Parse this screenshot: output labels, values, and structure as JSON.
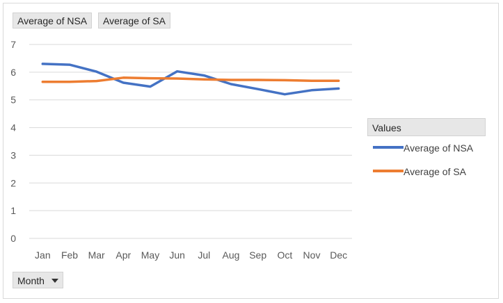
{
  "filters": {
    "values_buttons": [
      "Average of NSA",
      "Average of SA"
    ],
    "axis_field": "Month"
  },
  "legend": {
    "title": "Values",
    "items": [
      {
        "label": "Average of NSA",
        "color": "#4472c4"
      },
      {
        "label": "Average of SA",
        "color": "#ed7d31"
      }
    ]
  },
  "chart_data": {
    "type": "line",
    "categories": [
      "Jan",
      "Feb",
      "Mar",
      "Apr",
      "May",
      "Jun",
      "Jul",
      "Aug",
      "Sep",
      "Oct",
      "Nov",
      "Dec"
    ],
    "series": [
      {
        "name": "Average of NSA",
        "color": "#4472c4",
        "values": [
          6.3,
          6.27,
          6.02,
          5.62,
          5.48,
          6.03,
          5.88,
          5.57,
          5.39,
          5.2,
          5.35,
          5.41
        ]
      },
      {
        "name": "Average of SA",
        "color": "#ed7d31",
        "values": [
          5.65,
          5.65,
          5.68,
          5.8,
          5.78,
          5.77,
          5.74,
          5.72,
          5.72,
          5.71,
          5.69,
          5.69
        ]
      }
    ],
    "y_ticks": [
      "0",
      "1",
      "2",
      "3",
      "4",
      "5",
      "6",
      "7"
    ],
    "ylim": [
      0,
      7
    ],
    "grid": true,
    "legend_position": "right"
  }
}
